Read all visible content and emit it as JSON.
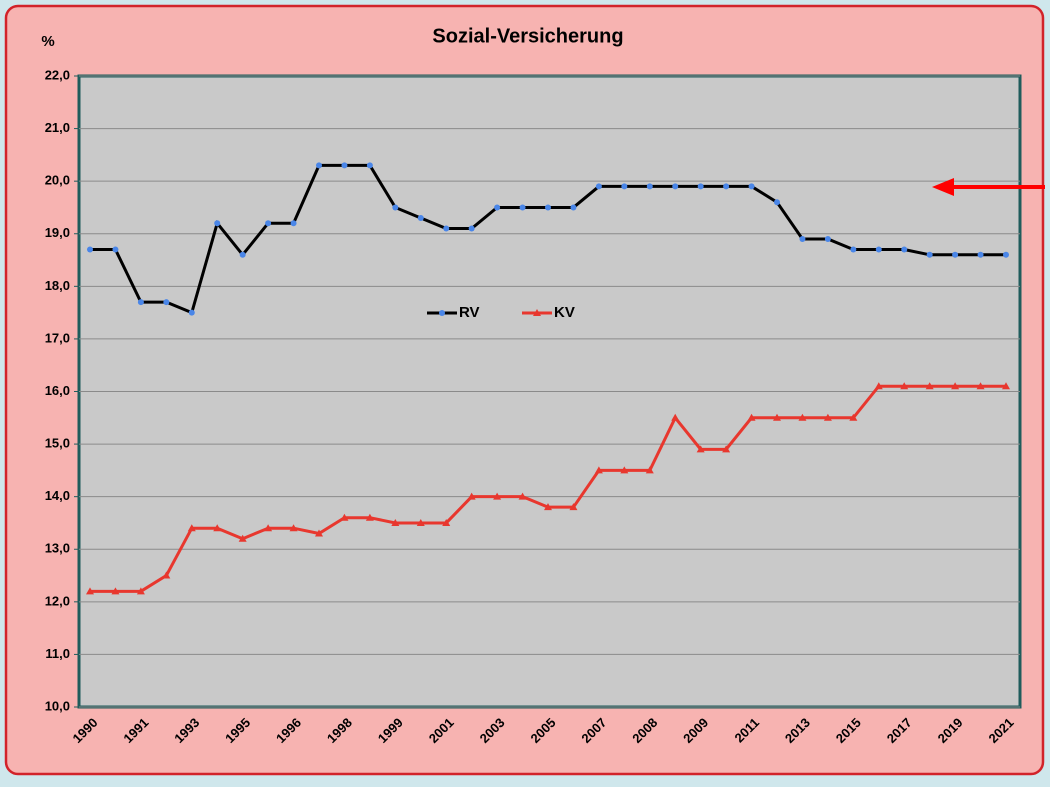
{
  "chart_data": {
    "type": "line",
    "title": "Sozial-Versicherung",
    "y_label": "%",
    "categories": [
      "1990",
      null,
      "1991",
      null,
      "1993",
      null,
      "1995",
      null,
      "1996",
      null,
      "1998",
      null,
      "1999",
      null,
      "2001",
      null,
      "2003",
      null,
      "2005",
      null,
      "2007",
      null,
      "2008",
      null,
      "2009",
      null,
      "2011",
      null,
      "2013",
      null,
      "2015",
      null,
      "2017",
      null,
      "2019",
      null,
      "2021"
    ],
    "series": [
      {
        "name": "RV",
        "color": "#000000",
        "marker_color": "#4a86e8",
        "marker": "circle",
        "values": [
          18.7,
          18.7,
          17.7,
          17.7,
          17.5,
          19.2,
          18.6,
          19.2,
          19.2,
          20.3,
          20.3,
          20.3,
          19.5,
          19.3,
          19.1,
          19.1,
          19.5,
          19.5,
          19.5,
          19.5,
          19.9,
          19.9,
          19.9,
          19.9,
          19.9,
          19.9,
          19.9,
          19.6,
          18.9,
          18.9,
          18.7,
          18.7,
          18.7,
          18.6,
          18.6,
          18.6,
          18.6
        ]
      },
      {
        "name": "KV",
        "color": "#e8372e",
        "marker_color": "#e8372e",
        "marker": "triangle",
        "values": [
          12.2,
          12.2,
          12.2,
          12.5,
          13.4,
          13.4,
          13.2,
          13.4,
          13.4,
          13.3,
          13.6,
          13.6,
          13.5,
          13.5,
          13.5,
          14.0,
          14.0,
          14.0,
          13.8,
          13.8,
          14.5,
          14.5,
          14.5,
          15.5,
          14.9,
          14.9,
          15.5,
          15.5,
          15.5,
          15.5,
          15.5,
          16.1,
          16.1,
          16.1,
          16.1,
          16.1,
          16.1
        ]
      }
    ],
    "ylim": [
      10,
      22
    ],
    "yticks": [
      {
        "value": 10,
        "label": "10,0"
      },
      {
        "value": 11,
        "label": "11,0"
      },
      {
        "value": 12,
        "label": "12,0"
      },
      {
        "value": 13,
        "label": "13,0"
      },
      {
        "value": 14,
        "label": "14,0"
      },
      {
        "value": 15,
        "label": "15,0"
      },
      {
        "value": 16,
        "label": "16,0"
      },
      {
        "value": 17,
        "label": "17,0"
      },
      {
        "value": 18,
        "label": "18,0"
      },
      {
        "value": 19,
        "label": "19,0"
      },
      {
        "value": 20,
        "label": "20,0"
      },
      {
        "value": 21,
        "label": "21,0"
      },
      {
        "value": 22,
        "label": "22,0"
      }
    ],
    "grid": true,
    "legend": "center"
  }
}
